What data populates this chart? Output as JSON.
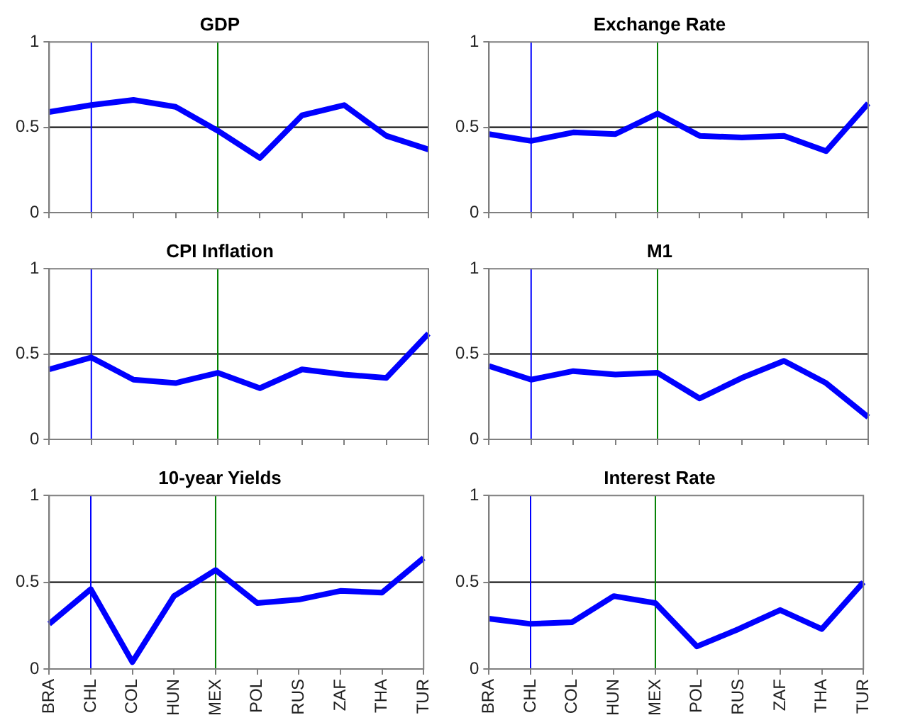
{
  "chart_data": [
    {
      "type": "line",
      "title": "GDP",
      "categories": [
        "BRA",
        "CHL",
        "COL",
        "HUN",
        "MEX",
        "POL",
        "RUS",
        "ZAF",
        "THA",
        "TUR"
      ],
      "tick_labels": "y",
      "marker": "none",
      "ylim": [
        0,
        1
      ],
      "yticks": [
        0,
        0.5,
        1
      ],
      "series": [
        {
          "color": "#0000ff",
          "values": [
            0.59,
            0.63,
            0.66,
            0.62,
            0.48,
            0.32,
            0.57,
            0.63,
            0.45,
            0.37
          ]
        }
      ],
      "ref_lines": [
        {
          "axis": "y",
          "value": 0.5,
          "color": "#000000"
        },
        {
          "axis": "x",
          "value": "CHL",
          "color": "#0000ff"
        },
        {
          "axis": "x",
          "value": "MEX",
          "color": "#008000"
        }
      ]
    },
    {
      "type": "line",
      "title": "Exchange Rate",
      "categories": [
        "BRA",
        "CHL",
        "COL",
        "HUN",
        "MEX",
        "POL",
        "RUS",
        "ZAF",
        "THA",
        "TUR"
      ],
      "tick_labels": "y",
      "marker": "none",
      "ylim": [
        0,
        1
      ],
      "yticks": [
        0,
        0.5,
        1
      ],
      "series": [
        {
          "color": "#0000ff",
          "values": [
            0.46,
            0.42,
            0.47,
            0.46,
            0.58,
            0.45,
            0.44,
            0.45,
            0.36,
            0.64
          ]
        }
      ],
      "ref_lines": [
        {
          "axis": "y",
          "value": 0.5,
          "color": "#000000"
        },
        {
          "axis": "x",
          "value": "CHL",
          "color": "#0000ff"
        },
        {
          "axis": "x",
          "value": "MEX",
          "color": "#008000"
        }
      ]
    },
    {
      "type": "line",
      "title": "CPI Inflation",
      "categories": [
        "BRA",
        "CHL",
        "COL",
        "HUN",
        "MEX",
        "POL",
        "RUS",
        "ZAF",
        "THA",
        "TUR"
      ],
      "tick_labels": "y",
      "marker": "none",
      "ylim": [
        0,
        1
      ],
      "yticks": [
        0,
        0.5,
        1
      ],
      "series": [
        {
          "color": "#0000ff",
          "values": [
            0.41,
            0.48,
            0.35,
            0.33,
            0.39,
            0.3,
            0.41,
            0.38,
            0.36,
            0.62
          ]
        }
      ],
      "ref_lines": [
        {
          "axis": "y",
          "value": 0.5,
          "color": "#000000"
        },
        {
          "axis": "x",
          "value": "CHL",
          "color": "#0000ff"
        },
        {
          "axis": "x",
          "value": "MEX",
          "color": "#008000"
        }
      ]
    },
    {
      "type": "line",
      "title": "M1",
      "categories": [
        "BRA",
        "CHL",
        "COL",
        "HUN",
        "MEX",
        "POL",
        "RUS",
        "ZAF",
        "THA",
        "TUR"
      ],
      "tick_labels": "y",
      "marker": "none",
      "ylim": [
        0,
        1
      ],
      "yticks": [
        0,
        0.5,
        1
      ],
      "series": [
        {
          "color": "#0000ff",
          "values": [
            0.43,
            0.35,
            0.4,
            0.38,
            0.39,
            0.24,
            0.36,
            0.46,
            0.33,
            0.13
          ]
        }
      ],
      "ref_lines": [
        {
          "axis": "y",
          "value": 0.5,
          "color": "#000000"
        },
        {
          "axis": "x",
          "value": "CHL",
          "color": "#0000ff"
        },
        {
          "axis": "x",
          "value": "MEX",
          "color": "#008000"
        }
      ]
    },
    {
      "type": "line",
      "title": "10-year Yields",
      "categories": [
        "BRA",
        "CHL",
        "COL",
        "HUN",
        "MEX",
        "POL",
        "RUS",
        "ZAF",
        "THA",
        "TUR"
      ],
      "marker": "none",
      "ylim": [
        0,
        1
      ],
      "yticks": [
        0,
        0.5,
        1
      ],
      "series": [
        {
          "color": "#0000ff",
          "values": [
            0.26,
            0.46,
            0.04,
            0.42,
            0.57,
            0.38,
            0.4,
            0.45,
            0.44,
            0.64
          ]
        }
      ],
      "ref_lines": [
        {
          "axis": "y",
          "value": 0.5,
          "color": "#000000"
        },
        {
          "axis": "x",
          "value": "CHL",
          "color": "#0000ff"
        },
        {
          "axis": "x",
          "value": "MEX",
          "color": "#008000"
        }
      ]
    },
    {
      "type": "line",
      "title": "Interest Rate",
      "categories": [
        "BRA",
        "CHL",
        "COL",
        "HUN",
        "MEX",
        "POL",
        "RUS",
        "ZAF",
        "THA",
        "TUR"
      ],
      "marker": "none",
      "ylim": [
        0,
        1
      ],
      "yticks": [
        0,
        0.5,
        1
      ],
      "series": [
        {
          "color": "#0000ff",
          "values": [
            0.29,
            0.26,
            0.27,
            0.42,
            0.38,
            0.13,
            0.23,
            0.34,
            0.23,
            0.5
          ]
        }
      ],
      "ref_lines": [
        {
          "axis": "y",
          "value": 0.5,
          "color": "#000000"
        },
        {
          "axis": "x",
          "value": "CHL",
          "color": "#0000ff"
        },
        {
          "axis": "x",
          "value": "MEX",
          "color": "#008000"
        }
      ]
    }
  ]
}
